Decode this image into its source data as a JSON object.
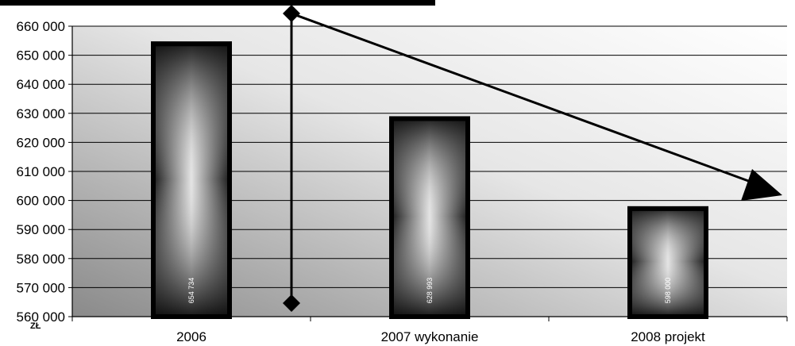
{
  "chart_data": {
    "type": "bar",
    "categories": [
      "2006",
      "2007 wykonanie",
      "2008 projekt"
    ],
    "values": [
      654734,
      628993,
      598000
    ],
    "value_labels": [
      "654 734",
      "628 993",
      "598 000"
    ],
    "y_ticks": [
      "560 000",
      "570 000",
      "580 000",
      "590 000",
      "600 000",
      "610 000",
      "620 000",
      "630 000",
      "640 000",
      "650 000",
      "660 000"
    ],
    "y_unit": "zł",
    "ylim": [
      560000,
      660000
    ],
    "grid": true,
    "legend": "none",
    "trend": {
      "from_category": 0,
      "to_category": 2,
      "direction": "decreasing"
    },
    "colors": {
      "bar_border": "#000000",
      "bar_center": "#e6e6e6",
      "bar_edge": "#101010",
      "plot_bg_dark": "#8c8c8c",
      "plot_bg_light": "#ffffff"
    }
  }
}
